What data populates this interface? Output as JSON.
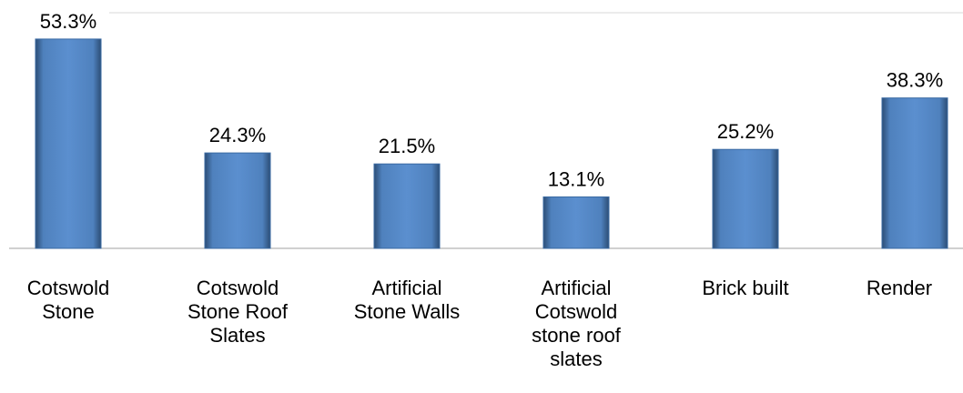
{
  "chart_data": {
    "type": "bar",
    "categories": [
      "Cotswold Stone",
      "Cotswold Stone Roof Slates",
      "Artificial Stone Walls",
      "Artificial Cotswold stone roof slates",
      "Brick built",
      "Render"
    ],
    "values": [
      53.3,
      24.3,
      21.5,
      13.1,
      25.2,
      38.3
    ],
    "value_labels": [
      "53.3%",
      "24.3%",
      "21.5%",
      "13.1%",
      "25.2%",
      "38.3%"
    ],
    "color": "#4f81bd",
    "ylim": [
      0,
      60
    ]
  }
}
